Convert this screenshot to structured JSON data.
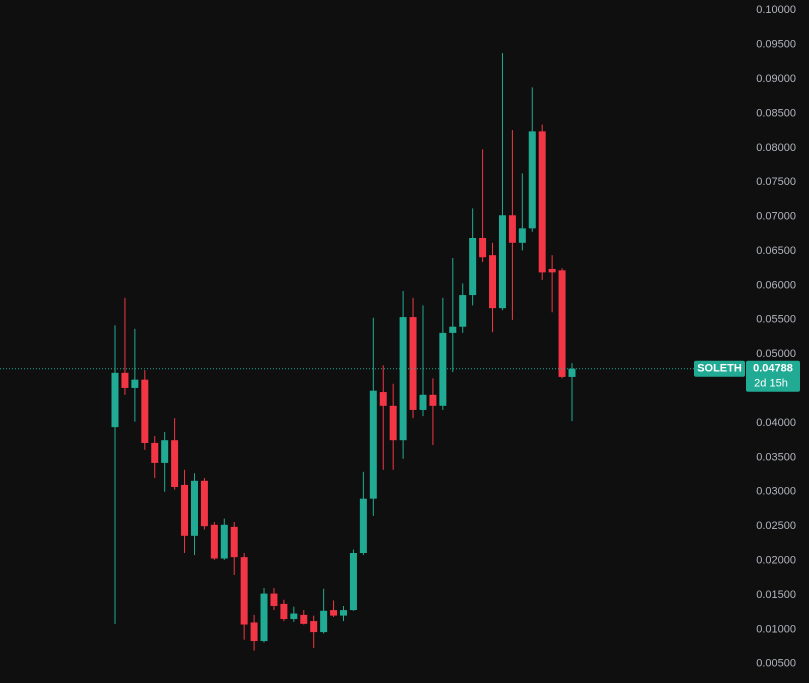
{
  "chart_data": {
    "type": "candlestick",
    "symbol": "SOLETH",
    "countdown": "2d 15h",
    "last_price": 0.04788,
    "up_color": "#22ab94",
    "down_color": "#f23645",
    "open": [
      0.0394,
      0.0473,
      0.0451,
      0.0463,
      0.0371,
      0.0342,
      0.0375,
      0.031,
      0.0236,
      0.0316,
      0.0252,
      0.0203,
      0.0249,
      0.0205,
      0.011,
      0.0083,
      0.0152,
      0.0137,
      0.0115,
      0.0121,
      0.0112,
      0.0096,
      0.0128,
      0.012,
      0.0128,
      0.0211,
      0.029,
      0.0445,
      0.0425,
      0.0375,
      0.0554,
      0.0419,
      0.0441,
      0.0425,
      0.0531,
      0.054,
      0.0586,
      0.0669,
      0.0644,
      0.0567,
      0.0702,
      0.0662,
      0.0683,
      0.0824,
      0.0624,
      0.0622,
      0.0467
    ],
    "high": [
      0.0542,
      0.0582,
      0.0537,
      0.0477,
      0.0381,
      0.0387,
      0.0407,
      0.0332,
      0.0327,
      0.032,
      0.0256,
      0.0261,
      0.0256,
      0.0211,
      0.0121,
      0.016,
      0.016,
      0.0143,
      0.0133,
      0.0128,
      0.012,
      0.0159,
      0.0142,
      0.0134,
      0.0216,
      0.0329,
      0.0553,
      0.0484,
      0.0457,
      0.0592,
      0.0582,
      0.0571,
      0.0465,
      0.0582,
      0.064,
      0.0603,
      0.0712,
      0.0798,
      0.0662,
      0.0938,
      0.0826,
      0.0763,
      0.0888,
      0.0834,
      0.0644,
      0.0625,
      0.0487
    ],
    "low": [
      0.0108,
      0.0441,
      0.0402,
      0.0361,
      0.032,
      0.03,
      0.0303,
      0.0211,
      0.0208,
      0.0245,
      0.0201,
      0.0201,
      0.0179,
      0.0085,
      0.0069,
      0.0081,
      0.0128,
      0.0112,
      0.0111,
      0.0107,
      0.0073,
      0.0094,
      0.0118,
      0.0112,
      0.0127,
      0.0208,
      0.0265,
      0.0332,
      0.0332,
      0.0348,
      0.0407,
      0.041,
      0.0368,
      0.0419,
      0.0474,
      0.0531,
      0.0571,
      0.0634,
      0.0532,
      0.0564,
      0.055,
      0.0651,
      0.0678,
      0.0608,
      0.0561,
      0.0465,
      0.0403
    ],
    "close": [
      0.0473,
      0.0451,
      0.0463,
      0.0371,
      0.0342,
      0.0375,
      0.0307,
      0.0236,
      0.0316,
      0.025,
      0.0203,
      0.0252,
      0.0205,
      0.0107,
      0.0083,
      0.0152,
      0.0134,
      0.0115,
      0.0123,
      0.0108,
      0.0096,
      0.0127,
      0.012,
      0.0128,
      0.0211,
      0.029,
      0.0447,
      0.0425,
      0.0375,
      0.0554,
      0.0419,
      0.0441,
      0.0425,
      0.0531,
      0.054,
      0.0586,
      0.0669,
      0.0641,
      0.0567,
      0.0702,
      0.0662,
      0.0683,
      0.0824,
      0.0619,
      0.0619,
      0.0467,
      0.0479
    ],
    "ylim": [
      0.0022,
      0.1015
    ],
    "yticks": [
      {
        "value": 0.1,
        "label": "0.10000"
      },
      {
        "value": 0.095,
        "label": "0.09500"
      },
      {
        "value": 0.09,
        "label": "0.09000"
      },
      {
        "value": 0.085,
        "label": "0.08500"
      },
      {
        "value": 0.08,
        "label": "0.08000"
      },
      {
        "value": 0.075,
        "label": "0.07500"
      },
      {
        "value": 0.07,
        "label": "0.07000"
      },
      {
        "value": 0.065,
        "label": "0.06500"
      },
      {
        "value": 0.06,
        "label": "0.06000"
      },
      {
        "value": 0.055,
        "label": "0.05500"
      },
      {
        "value": 0.05,
        "label": "0.05000"
      },
      {
        "value": 0.045,
        "label": "0.04500"
      },
      {
        "value": 0.04,
        "label": "0.04000"
      },
      {
        "value": 0.035,
        "label": "0.03500"
      },
      {
        "value": 0.03,
        "label": "0.03000"
      },
      {
        "value": 0.025,
        "label": "0.02500"
      },
      {
        "value": 0.02,
        "label": "0.02000"
      },
      {
        "value": 0.015,
        "label": "0.01500"
      },
      {
        "value": 0.01,
        "label": "0.01000"
      },
      {
        "value": 0.005,
        "label": "0.00500"
      }
    ]
  }
}
